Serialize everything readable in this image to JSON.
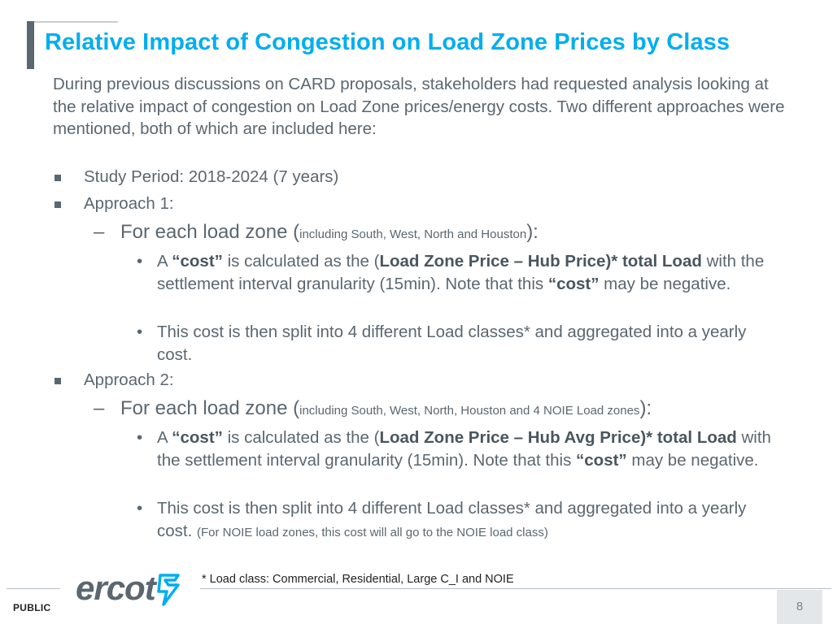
{
  "title": "Relative Impact of Congestion on Load Zone Prices by Class",
  "intro": "During previous discussions on CARD proposals, stakeholders had requested analysis looking at the relative impact of congestion on Load Zone prices/energy costs.  Two different approaches were mentioned, both of which are included here:",
  "bullets": {
    "study_period": "Study Period: 2018-2024 (7 years)",
    "approach1": {
      "label": "Approach 1:",
      "sub_label": "For each load zone (",
      "sub_small": "including South, West, North and Houston",
      "sub_end": "):",
      "item1_a": "A ",
      "item1_cost1": "“cost”",
      "item1_b": " is calculated as the (",
      "item1_bold": "Load Zone Price – Hub Price)* total Load",
      "item1_c": " with the settlement interval granularity (15min). Note that this ",
      "item1_cost2": "“cost”",
      "item1_d": " may be negative.",
      "item2": "This cost is then split into 4 different Load classes* and aggregated into a yearly cost."
    },
    "approach2": {
      "label": "Approach 2:",
      "sub_label": "For each load zone (",
      "sub_small": "including South, West, North, Houston and 4 NOIE Load zones",
      "sub_end": "):",
      "item1_a": "A ",
      "item1_cost1": "“cost”",
      "item1_b": " is calculated as the (",
      "item1_bold": "Load Zone Price – Hub Avg Price)* total Load",
      "item1_c": " with the settlement interval granularity (15min). Note that this ",
      "item1_cost2": "“cost”",
      "item1_d": " may be negative.",
      "item2": "This cost is then split into 4 different Load classes* and aggregated into a yearly cost. ",
      "item2_small": "(For NOIE load zones, this cost will all go to the NOIE load class)"
    }
  },
  "footnote": "* Load class: Commercial, Residential, Large C_I and  NOIE",
  "footer": {
    "classification": "PUBLIC",
    "logo_text": "ercot",
    "page_number": "8"
  },
  "colors": {
    "title": "#00aeef",
    "body_text": "#5b6770",
    "logo_accent": "#00aeef",
    "page_box": "#e3e7ea"
  },
  "icons": {
    "bullet_level1": "square-bullet",
    "bullet_level2": "en-dash",
    "bullet_level3": "bullet-dot",
    "logo_mark": "ercot-lightning-mark"
  }
}
